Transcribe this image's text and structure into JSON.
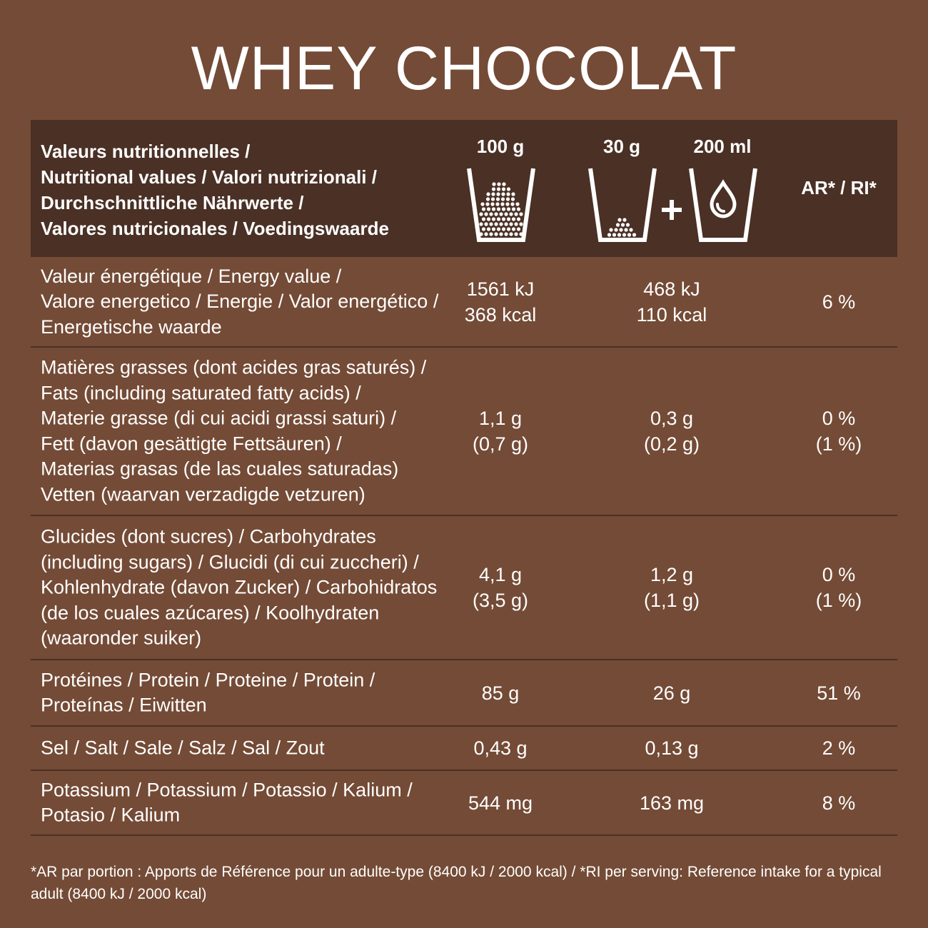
{
  "title": "WHEY CHOCOLAT",
  "header": {
    "label_lines": [
      "Valeurs nutritionnelles /",
      "Nutritional values / Valori nutrizionali /",
      "Durchschnittliche Nährwerte /",
      "Valores nutricionales / Voedingswaarde"
    ],
    "col_100g": "100 g",
    "col_30g": "30 g",
    "col_200ml": "200 ml",
    "col_ri": "AR* / RI*",
    "icons": {
      "glass_100g": "powder-glass-full-icon",
      "glass_30g": "powder-glass-low-icon",
      "plus": "plus-icon",
      "glass_water": "water-glass-icon"
    }
  },
  "rows": [
    {
      "label_lines": [
        "Valeur énergétique / Energy value /",
        "Valore energetico / Energie / Valor energético /",
        "Energetische waarde"
      ],
      "per_100g": [
        "1561 kJ",
        "368 kcal"
      ],
      "per_serving": [
        "468 kJ",
        "110 kcal"
      ],
      "ri": [
        "6 %"
      ]
    },
    {
      "label_lines": [
        "Matières grasses (dont acides gras saturés) /",
        "Fats (including saturated fatty acids) /",
        "Materie grasse (di cui acidi grassi saturi) /",
        "Fett (davon gesättigte Fettsäuren) /",
        "Materias grasas (de las cuales saturadas)",
        "Vetten (waarvan verzadigde vetzuren)"
      ],
      "per_100g": [
        "1,1 g",
        "(0,7 g)"
      ],
      "per_serving": [
        "0,3 g",
        "(0,2 g)"
      ],
      "ri": [
        "0 %",
        "(1 %)"
      ]
    },
    {
      "label_lines": [
        "Glucides (dont sucres) / Carbohydrates",
        "(including sugars) / Glucidi (di cui zuccheri) /",
        "Kohlenhydrate (davon Zucker) / Carbohidratos",
        "(de los cuales azúcares) / Koolhydraten",
        "(waaronder suiker)"
      ],
      "per_100g": [
        "4,1 g",
        "(3,5 g)"
      ],
      "per_serving": [
        "1,2 g",
        "(1,1 g)"
      ],
      "ri": [
        "0 %",
        "(1 %)"
      ]
    },
    {
      "label_lines": [
        "Protéines / Protein / Proteine / Protein /",
        "Proteínas / Eiwitten"
      ],
      "per_100g": [
        "85 g"
      ],
      "per_serving": [
        "26 g"
      ],
      "ri": [
        "51 %"
      ]
    },
    {
      "label_lines": [
        "Sel / Salt / Sale / Salz / Sal / Zout"
      ],
      "per_100g": [
        "0,43 g"
      ],
      "per_serving": [
        "0,13 g"
      ],
      "ri": [
        "2 %"
      ]
    },
    {
      "label_lines": [
        "Potassium / Potassium / Potassio / Kalium /",
        "Potasio / Kalium"
      ],
      "per_100g": [
        "544 mg"
      ],
      "per_serving": [
        "163 mg"
      ],
      "ri": [
        "8 %"
      ]
    }
  ],
  "footnote": "*AR par portion : Apports de Référence pour un adulte-type (8400 kJ / 2000 kcal) / *RI per serving: Reference intake for a typical adult (8400 kJ / 2000 kcal)"
}
